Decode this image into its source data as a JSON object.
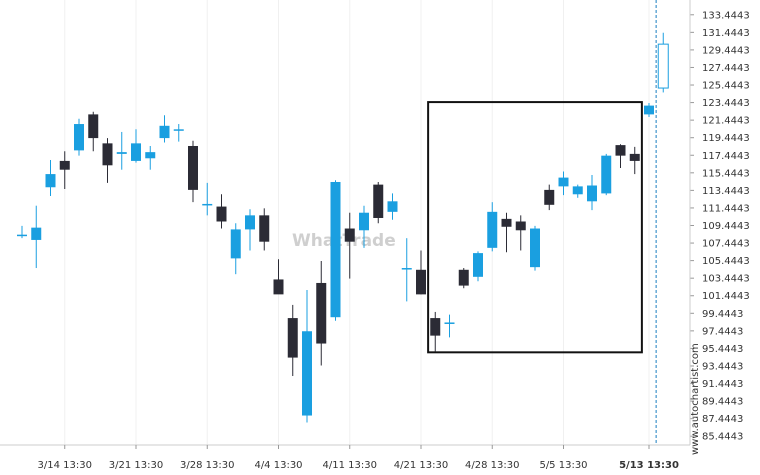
{
  "chart_data": {
    "type": "candlestick",
    "watermark": "WhatTrade",
    "credit": "www.autochartist.com",
    "ylim": [
      84.4443,
      134.4443
    ],
    "y_ticks": [
      "85.4443",
      "87.4443",
      "89.4443",
      "91.4443",
      "93.4443",
      "95.4443",
      "97.4443",
      "99.4443",
      "101.4443",
      "103.4443",
      "105.4443",
      "107.4443",
      "109.4443",
      "111.4443",
      "113.4443",
      "115.4443",
      "117.4443",
      "119.4443",
      "121.4443",
      "123.4443",
      "125.4443",
      "127.4443",
      "129.4443",
      "131.4443",
      "133.4443"
    ],
    "x_ticks": [
      {
        "label": "3/14 13:30",
        "index": 3
      },
      {
        "label": "3/21 13:30",
        "index": 8
      },
      {
        "label": "3/28 13:30",
        "index": 13
      },
      {
        "label": "4/4 13:30",
        "index": 18
      },
      {
        "label": "4/11 13:30",
        "index": 23
      },
      {
        "label": "4/21 13:30",
        "index": 28
      },
      {
        "label": "4/28 13:30",
        "index": 33
      },
      {
        "label": "5/5 13:30",
        "index": 38
      },
      {
        "label": "5/13 13:30",
        "index": 44,
        "bold": true
      }
    ],
    "up_color": "#1a9fe0",
    "down_color": "#2b2b35",
    "candles": [
      {
        "o": 108.4,
        "h": 109.4,
        "l": 108.0,
        "c": 108.4
      },
      {
        "o": 107.8,
        "h": 111.7,
        "l": 104.6,
        "c": 109.2
      },
      {
        "o": 113.8,
        "h": 116.9,
        "l": 112.8,
        "c": 115.3
      },
      {
        "o": 116.8,
        "h": 117.9,
        "l": 113.6,
        "c": 115.8
      },
      {
        "o": 118.0,
        "h": 121.6,
        "l": 117.4,
        "c": 121.0
      },
      {
        "o": 122.1,
        "h": 122.4,
        "l": 117.9,
        "c": 119.4
      },
      {
        "o": 118.8,
        "h": 119.4,
        "l": 114.3,
        "c": 116.3
      },
      {
        "o": 117.6,
        "h": 120.1,
        "l": 115.8,
        "c": 117.8
      },
      {
        "o": 116.8,
        "h": 120.4,
        "l": 116.6,
        "c": 118.8
      },
      {
        "o": 117.1,
        "h": 118.5,
        "l": 115.8,
        "c": 117.8
      },
      {
        "o": 119.4,
        "h": 122.0,
        "l": 118.9,
        "c": 120.8
      },
      {
        "o": 120.4,
        "h": 121.0,
        "l": 119.0,
        "c": 120.4
      },
      {
        "o": 118.5,
        "h": 119.1,
        "l": 112.1,
        "c": 113.5
      },
      {
        "o": 111.9,
        "h": 114.3,
        "l": 110.6,
        "c": 111.9
      },
      {
        "o": 111.6,
        "h": 113.0,
        "l": 109.1,
        "c": 109.9
      },
      {
        "o": 105.7,
        "h": 109.7,
        "l": 103.9,
        "c": 109.0
      },
      {
        "o": 109.0,
        "h": 111.3,
        "l": 106.6,
        "c": 110.6
      },
      {
        "o": 110.6,
        "h": 111.4,
        "l": 106.6,
        "c": 107.6
      },
      {
        "o": 103.3,
        "h": 105.6,
        "l": 101.8,
        "c": 101.6
      },
      {
        "o": 98.9,
        "h": 100.4,
        "l": 92.3,
        "c": 94.4
      },
      {
        "o": 87.8,
        "h": 102.1,
        "l": 87.0,
        "c": 97.4
      },
      {
        "o": 102.9,
        "h": 105.4,
        "l": 93.5,
        "c": 96.0
      },
      {
        "o": 99.0,
        "h": 114.6,
        "l": 98.6,
        "c": 114.4
      },
      {
        "o": 109.1,
        "h": 110.9,
        "l": 103.4,
        "c": 107.6
      },
      {
        "o": 108.9,
        "h": 111.7,
        "l": 106.9,
        "c": 110.9
      },
      {
        "o": 114.1,
        "h": 114.4,
        "l": 109.7,
        "c": 110.3
      },
      {
        "o": 111.0,
        "h": 113.1,
        "l": 110.1,
        "c": 112.2
      },
      {
        "o": 104.6,
        "h": 108.0,
        "l": 100.8,
        "c": 104.6
      },
      {
        "o": 104.4,
        "h": 106.6,
        "l": 101.6,
        "c": 101.6
      },
      {
        "o": 98.9,
        "h": 99.6,
        "l": 95.1,
        "c": 96.9
      },
      {
        "o": 98.4,
        "h": 99.3,
        "l": 96.7,
        "c": 98.4
      },
      {
        "o": 104.4,
        "h": 104.6,
        "l": 102.3,
        "c": 102.6
      },
      {
        "o": 103.6,
        "h": 106.5,
        "l": 103.1,
        "c": 106.3
      },
      {
        "o": 106.9,
        "h": 112.1,
        "l": 106.5,
        "c": 111.0
      },
      {
        "o": 110.2,
        "h": 110.9,
        "l": 106.4,
        "c": 109.3
      },
      {
        "o": 109.9,
        "h": 110.6,
        "l": 106.6,
        "c": 108.9
      },
      {
        "o": 104.7,
        "h": 109.4,
        "l": 104.3,
        "c": 109.1
      },
      {
        "o": 113.5,
        "h": 114.1,
        "l": 111.2,
        "c": 111.8
      },
      {
        "o": 113.9,
        "h": 115.6,
        "l": 112.9,
        "c": 114.9
      },
      {
        "o": 113.0,
        "h": 114.1,
        "l": 112.6,
        "c": 113.9
      },
      {
        "o": 112.2,
        "h": 115.2,
        "l": 111.2,
        "c": 114.0
      },
      {
        "o": 113.1,
        "h": 117.6,
        "l": 112.9,
        "c": 117.4
      },
      {
        "o": 118.6,
        "h": 118.7,
        "l": 116.0,
        "c": 117.4
      },
      {
        "o": 117.6,
        "h": 118.4,
        "l": 115.3,
        "c": 116.8
      },
      {
        "o": 122.1,
        "h": 123.4,
        "l": 121.8,
        "c": 123.1
      },
      {
        "o": 125.1,
        "h": 131.4,
        "l": 124.6,
        "c": 130.1
      }
    ],
    "pattern_box": {
      "start_index": 28.5,
      "end_index": 43.5,
      "top": 123.5,
      "bottom": 95.0
    },
    "marker_index": 44.5
  }
}
